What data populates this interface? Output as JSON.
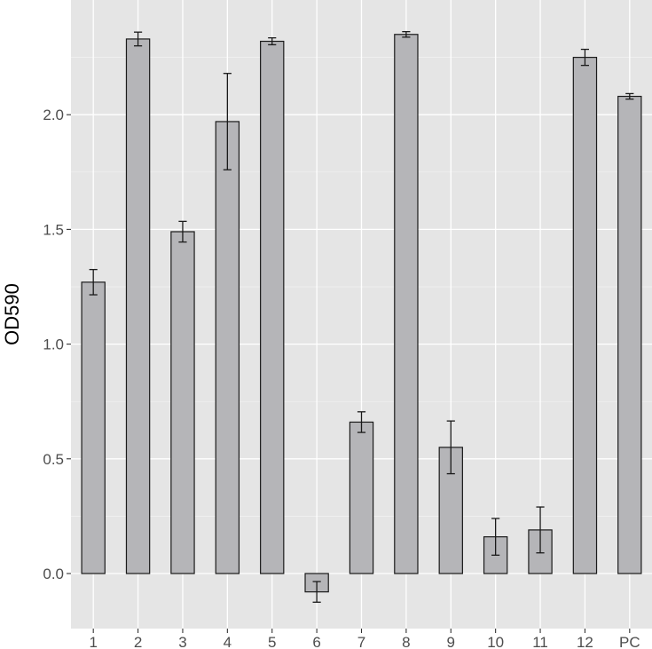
{
  "chart_data": {
    "type": "bar",
    "title": "",
    "xlabel": "",
    "ylabel": "OD590",
    "categories": [
      "1",
      "2",
      "3",
      "4",
      "5",
      "6",
      "7",
      "8",
      "9",
      "10",
      "11",
      "12",
      "PC"
    ],
    "values": [
      1.27,
      2.33,
      1.49,
      1.97,
      2.32,
      -0.08,
      0.66,
      2.35,
      0.55,
      0.16,
      0.19,
      2.25,
      2.08
    ],
    "error": [
      0.055,
      0.03,
      0.045,
      0.21,
      0.015,
      0.045,
      0.045,
      0.012,
      0.115,
      0.08,
      0.1,
      0.035,
      0.012
    ],
    "ylim": [
      -0.24,
      2.5
    ],
    "yticks": [
      0.0,
      0.5,
      1.0,
      1.5,
      2.0
    ],
    "grid": true,
    "colors": {
      "panel": "#e5e5e5",
      "grid_major": "#ffffff",
      "bar_fill": "#b5b5b8",
      "bar_stroke": "#1a1a1a",
      "error_bar": "#1a1a1a",
      "tick_text": "#4d4d4d"
    }
  }
}
